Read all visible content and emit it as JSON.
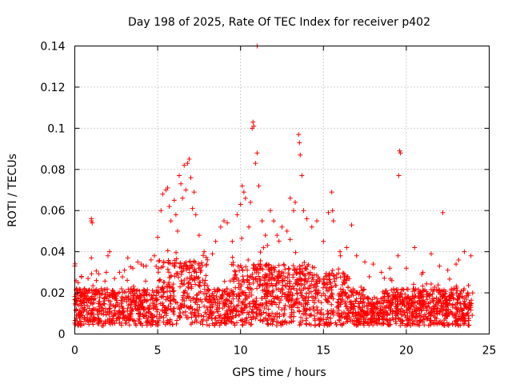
{
  "chart_data": {
    "type": "scatter",
    "title": "Day 198 of 2025, Rate Of TEC Index for receiver p402",
    "xlabel": "GPS time / hours",
    "ylabel": "ROTI / TECUs",
    "xlim": [
      0,
      25
    ],
    "ylim": [
      0,
      0.14
    ],
    "x_ticks": [
      0,
      5,
      10,
      15,
      20,
      25
    ],
    "y_ticks": [
      0,
      0.02,
      0.04,
      0.06,
      0.08,
      0.1,
      0.12,
      0.14
    ],
    "x_tick_labels": [
      "0",
      "5",
      "10",
      "15",
      "20",
      "25"
    ],
    "y_tick_labels": [
      "0",
      "0.02",
      "0.04",
      "0.06",
      "0.08",
      "0.1",
      "0.12",
      "0.14"
    ],
    "grid": true,
    "marker": "+",
    "color": "#ff0000",
    "series": [
      {
        "name": "ROTI",
        "points": [
          [
            0.0,
            0.033
          ],
          [
            0.1,
            0.012
          ],
          [
            0.2,
            0.025
          ],
          [
            0.4,
            0.028
          ],
          [
            0.6,
            0.02
          ],
          [
            0.8,
            0.027
          ],
          [
            1.0,
            0.055
          ],
          [
            1.0,
            0.056
          ],
          [
            1.05,
            0.054
          ],
          [
            1.0,
            0.037
          ],
          [
            1.3,
            0.026
          ],
          [
            1.6,
            0.022
          ],
          [
            1.9,
            0.03
          ],
          [
            2.0,
            0.038
          ],
          [
            2.1,
            0.04
          ],
          [
            2.4,
            0.027
          ],
          [
            2.7,
            0.03
          ],
          [
            3.0,
            0.031
          ],
          [
            3.2,
            0.037
          ],
          [
            3.5,
            0.032
          ],
          [
            3.8,
            0.035
          ],
          [
            4.0,
            0.034
          ],
          [
            4.3,
            0.033
          ],
          [
            4.6,
            0.036
          ],
          [
            4.8,
            0.038
          ],
          [
            5.0,
            0.047
          ],
          [
            5.2,
            0.06
          ],
          [
            5.3,
            0.068
          ],
          [
            5.5,
            0.07
          ],
          [
            5.6,
            0.071
          ],
          [
            5.7,
            0.062
          ],
          [
            5.8,
            0.055
          ],
          [
            6.0,
            0.065
          ],
          [
            6.1,
            0.058
          ],
          [
            6.2,
            0.05
          ],
          [
            6.3,
            0.077
          ],
          [
            6.4,
            0.073
          ],
          [
            6.5,
            0.066
          ],
          [
            6.6,
            0.082
          ],
          [
            6.7,
            0.07
          ],
          [
            6.8,
            0.083
          ],
          [
            6.9,
            0.085
          ],
          [
            7.0,
            0.076
          ],
          [
            7.1,
            0.061
          ],
          [
            7.2,
            0.069
          ],
          [
            7.3,
            0.058
          ],
          [
            7.5,
            0.048
          ],
          [
            7.8,
            0.04
          ],
          [
            8.0,
            0.036
          ],
          [
            8.3,
            0.039
          ],
          [
            8.5,
            0.045
          ],
          [
            8.8,
            0.052
          ],
          [
            9.0,
            0.055
          ],
          [
            9.2,
            0.054
          ],
          [
            9.5,
            0.045
          ],
          [
            9.8,
            0.058
          ],
          [
            10.0,
            0.063
          ],
          [
            10.1,
            0.072
          ],
          [
            10.2,
            0.069
          ],
          [
            10.3,
            0.066
          ],
          [
            10.5,
            0.052
          ],
          [
            10.6,
            0.064
          ],
          [
            10.7,
            0.1
          ],
          [
            10.8,
            0.101
          ],
          [
            10.75,
            0.103
          ],
          [
            10.9,
            0.083
          ],
          [
            11.0,
            0.088
          ],
          [
            11.1,
            0.072
          ],
          [
            11.0,
            0.14
          ],
          [
            11.3,
            0.055
          ],
          [
            11.5,
            0.048
          ],
          [
            11.8,
            0.06
          ],
          [
            12.0,
            0.055
          ],
          [
            12.2,
            0.048
          ],
          [
            12.5,
            0.052
          ],
          [
            12.8,
            0.05
          ],
          [
            13.0,
            0.066
          ],
          [
            13.2,
            0.06
          ],
          [
            13.3,
            0.064
          ],
          [
            13.5,
            0.097
          ],
          [
            13.55,
            0.093
          ],
          [
            13.6,
            0.087
          ],
          [
            13.7,
            0.077
          ],
          [
            13.8,
            0.06
          ],
          [
            14.0,
            0.056
          ],
          [
            14.3,
            0.052
          ],
          [
            14.6,
            0.055
          ],
          [
            15.0,
            0.045
          ],
          [
            15.3,
            0.059
          ],
          [
            15.5,
            0.069
          ],
          [
            15.55,
            0.06
          ],
          [
            15.6,
            0.055
          ],
          [
            16.0,
            0.04
          ],
          [
            16.4,
            0.042
          ],
          [
            16.7,
            0.053
          ],
          [
            17.0,
            0.038
          ],
          [
            17.5,
            0.035
          ],
          [
            18.0,
            0.034
          ],
          [
            18.5,
            0.03
          ],
          [
            19.0,
            0.032
          ],
          [
            19.5,
            0.038
          ],
          [
            19.6,
            0.089
          ],
          [
            19.65,
            0.088
          ],
          [
            19.55,
            0.077
          ],
          [
            20.0,
            0.032
          ],
          [
            20.5,
            0.042
          ],
          [
            21.0,
            0.03
          ],
          [
            21.5,
            0.039
          ],
          [
            22.0,
            0.033
          ],
          [
            22.2,
            0.059
          ],
          [
            22.5,
            0.031
          ],
          [
            23.0,
            0.034
          ],
          [
            23.5,
            0.04
          ],
          [
            23.9,
            0.038
          ]
        ]
      }
    ]
  }
}
